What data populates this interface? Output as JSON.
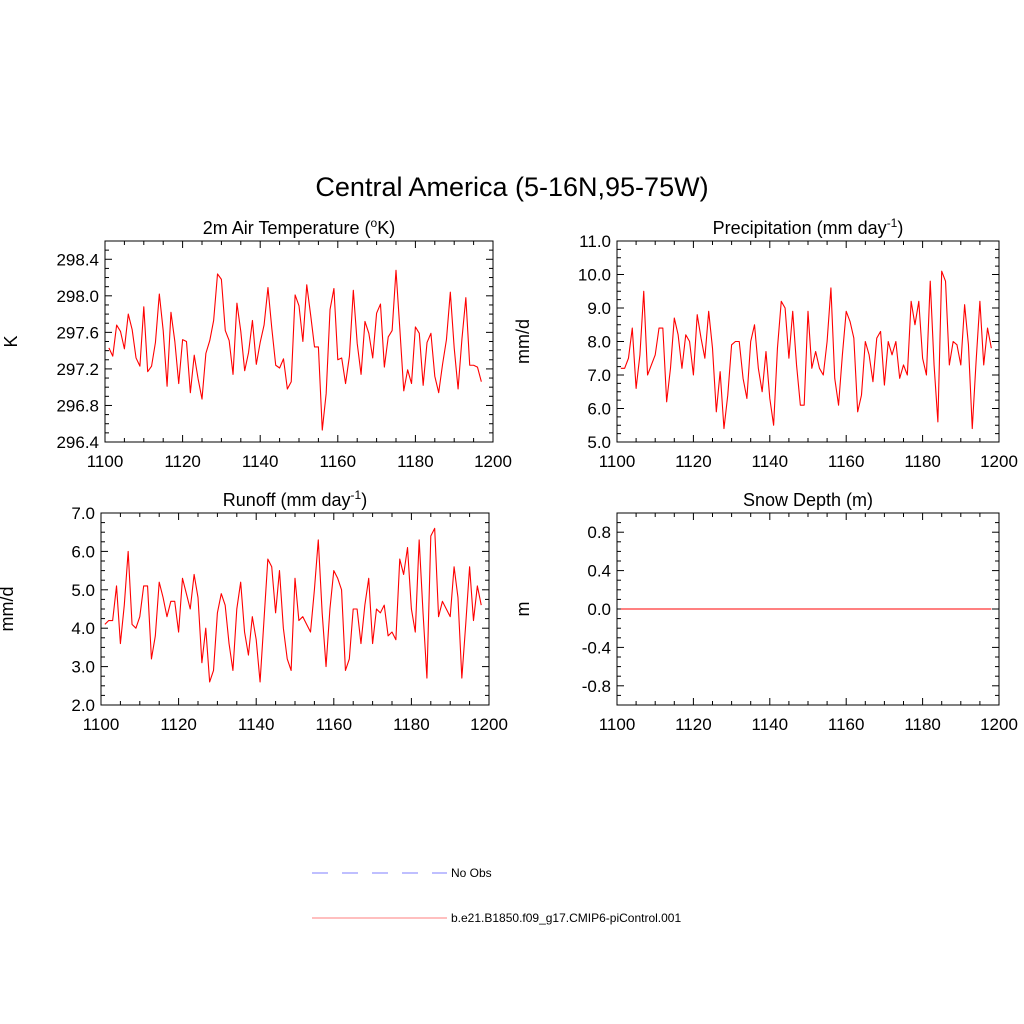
{
  "figure": {
    "title": "Central America (5-16N,95-75W)",
    "line_color": "#ff0000",
    "obs_color": "#9999ff"
  },
  "legend": {
    "obs_label": "No Obs",
    "model_label": "b.e21.B1850.f09_g17.CMIP6-piControl.001"
  },
  "chart_data": [
    {
      "type": "line",
      "title": "2m Air Temperature (",
      "title_sup": "o",
      "title_after": "K)",
      "ylabel": "K",
      "xlim": [
        1100,
        1200
      ],
      "ylim": [
        296.4,
        298.6
      ],
      "xticks": [
        "1100",
        "1120",
        "1140",
        "1160",
        "1180",
        "1200"
      ],
      "yticks": [
        "296.4",
        "296.8",
        "297.2",
        "297.6",
        "298.0",
        "298.4"
      ],
      "series": [
        {
          "name": "b.e21.B1850.f09_g17.CMIP6-piControl.001",
          "x_start": 1101,
          "values": [
            297.43,
            297.34,
            297.68,
            297.61,
            297.42,
            297.8,
            297.63,
            297.32,
            297.23,
            297.88,
            297.17,
            297.23,
            297.49,
            298.02,
            297.62,
            297.01,
            297.82,
            297.5,
            297.04,
            297.52,
            297.5,
            296.94,
            297.35,
            297.09,
            296.87,
            297.37,
            297.51,
            297.73,
            298.24,
            298.18,
            297.62,
            297.51,
            297.14,
            297.92,
            297.61,
            297.18,
            297.38,
            297.73,
            297.25,
            297.49,
            297.68,
            298.09,
            297.64,
            297.24,
            297.21,
            297.31,
            296.98,
            297.06,
            298.01,
            297.89,
            297.5,
            298.12,
            297.79,
            297.44,
            297.44,
            296.53,
            296.93,
            297.85,
            298.08,
            297.3,
            297.32,
            297.04,
            297.34,
            298.06,
            297.48,
            297.14,
            297.72,
            297.59,
            297.32,
            297.81,
            297.91,
            297.22,
            297.55,
            297.62,
            298.28,
            297.63,
            296.96,
            297.19,
            297.04,
            297.66,
            297.59,
            297.02,
            297.49,
            297.59,
            297.12,
            296.94,
            297.25,
            297.52,
            298.04,
            297.43,
            296.98,
            297.53,
            297.98,
            297.24,
            297.24,
            297.22,
            297.06
          ]
        }
      ]
    },
    {
      "type": "line",
      "title": "Precipitation (mm day",
      "title_sup": "-1",
      "title_after": ")",
      "ylabel": "mm/d",
      "xlim": [
        1100,
        1200
      ],
      "ylim": [
        5.0,
        11.0
      ],
      "xticks": [
        "1100",
        "1120",
        "1140",
        "1160",
        "1180",
        "1200"
      ],
      "yticks": [
        "5.0",
        "6.0",
        "7.0",
        "8.0",
        "9.0",
        "10.0",
        "11.0"
      ],
      "series": [
        {
          "name": "b.e21.B1850.f09_g17.CMIP6-piControl.001",
          "x_start": 1101,
          "values": [
            7.2,
            7.2,
            7.5,
            8.4,
            6.6,
            7.6,
            9.5,
            7.0,
            7.3,
            7.6,
            8.4,
            8.4,
            6.2,
            7.2,
            8.7,
            8.2,
            7.2,
            8.2,
            8.0,
            7.0,
            8.8,
            8.1,
            7.5,
            8.9,
            7.8,
            5.9,
            7.1,
            5.4,
            6.4,
            7.9,
            8.0,
            8.0,
            6.9,
            6.3,
            8.0,
            8.5,
            7.2,
            6.5,
            7.7,
            6.3,
            5.5,
            7.8,
            9.2,
            9.0,
            7.5,
            8.9,
            7.3,
            6.1,
            6.1,
            8.9,
            7.2,
            7.7,
            7.2,
            7.0,
            8.0,
            9.6,
            6.9,
            6.1,
            7.6,
            8.9,
            8.6,
            8.1,
            5.9,
            6.4,
            8.0,
            7.6,
            6.8,
            8.1,
            8.3,
            6.7,
            8.0,
            7.6,
            8.0,
            6.9,
            7.3,
            7.0,
            9.2,
            8.5,
            9.2,
            7.5,
            7.0,
            9.8,
            7.3,
            5.6,
            10.1,
            9.8,
            7.3,
            8.0,
            7.9,
            7.3,
            9.1,
            7.9,
            5.4,
            7.4,
            9.2,
            7.3,
            8.4,
            7.8
          ]
        }
      ]
    },
    {
      "type": "line",
      "title": "Runoff (mm day",
      "title_sup": "-1",
      "title_after": ")",
      "ylabel": "mm/d",
      "xlim": [
        1100,
        1200
      ],
      "ylim": [
        2.0,
        7.0
      ],
      "xticks": [
        "1100",
        "1120",
        "1140",
        "1160",
        "1180",
        "1200"
      ],
      "yticks": [
        "2.0",
        "3.0",
        "4.0",
        "5.0",
        "6.0",
        "7.0"
      ],
      "series": [
        {
          "name": "b.e21.B1850.f09_g17.CMIP6-piControl.001",
          "x_start": 1101,
          "values": [
            4.1,
            4.2,
            4.2,
            5.1,
            3.6,
            4.6,
            6.0,
            4.1,
            4.0,
            4.3,
            5.1,
            5.1,
            3.2,
            3.8,
            5.2,
            4.8,
            4.3,
            4.7,
            4.7,
            3.9,
            5.3,
            4.9,
            4.5,
            5.4,
            4.8,
            3.1,
            4.0,
            2.6,
            2.9,
            4.4,
            4.9,
            4.6,
            3.6,
            2.9,
            4.5,
            5.2,
            3.9,
            3.3,
            4.3,
            3.7,
            2.6,
            4.2,
            5.8,
            5.6,
            4.4,
            5.5,
            4.0,
            3.2,
            2.9,
            5.3,
            4.2,
            4.3,
            4.1,
            3.9,
            5.0,
            6.3,
            4.4,
            3.0,
            4.5,
            5.5,
            5.3,
            5.0,
            2.9,
            3.2,
            4.5,
            4.5,
            3.6,
            4.6,
            5.3,
            3.6,
            4.5,
            4.4,
            4.6,
            3.8,
            3.9,
            3.7,
            5.8,
            5.4,
            6.1,
            4.5,
            3.9,
            6.3,
            4.4,
            2.7,
            6.4,
            6.6,
            4.3,
            4.7,
            4.5,
            4.3,
            5.6,
            4.8,
            2.7,
            4.1,
            5.6,
            4.2,
            5.1,
            4.6
          ]
        }
      ]
    },
    {
      "type": "line",
      "title": "Snow Depth (m)",
      "title_sup": "",
      "title_after": "",
      "ylabel": "m",
      "xlim": [
        1100,
        1200
      ],
      "ylim": [
        -1.0,
        1.0
      ],
      "xticks": [
        "1100",
        "1120",
        "1140",
        "1160",
        "1180",
        "1200"
      ],
      "yticks": [
        "-0.8",
        "-0.4",
        "0.0",
        "0.4",
        "0.8"
      ],
      "series": [
        {
          "name": "b.e21.B1850.f09_g17.CMIP6-piControl.001",
          "x_start": 1101,
          "values": [
            0.0,
            0.0,
            0.0,
            0.0,
            0.0,
            0.0,
            0.0,
            0.0,
            0.0,
            0.0,
            0.0,
            0.0,
            0.0,
            0.0,
            0.0,
            0.0,
            0.0,
            0.0,
            0.0,
            0.0,
            0.0,
            0.0,
            0.0,
            0.0,
            0.0,
            0.0,
            0.0,
            0.0,
            0.0,
            0.0,
            0.0,
            0.0,
            0.0,
            0.0,
            0.0,
            0.0,
            0.0,
            0.0,
            0.0,
            0.0,
            0.0,
            0.0,
            0.0,
            0.0,
            0.0,
            0.0,
            0.0,
            0.0,
            0.0,
            0.0,
            0.0,
            0.0,
            0.0,
            0.0,
            0.0,
            0.0,
            0.0,
            0.0,
            0.0,
            0.0,
            0.0,
            0.0,
            0.0,
            0.0,
            0.0,
            0.0,
            0.0,
            0.0,
            0.0,
            0.0,
            0.0,
            0.0,
            0.0,
            0.0,
            0.0,
            0.0,
            0.0,
            0.0,
            0.0,
            0.0,
            0.0,
            0.0,
            0.0,
            0.0,
            0.0,
            0.0,
            0.0,
            0.0,
            0.0,
            0.0,
            0.0,
            0.0,
            0.0,
            0.0,
            0.0,
            0.0,
            0.0,
            0.0
          ]
        }
      ]
    }
  ]
}
